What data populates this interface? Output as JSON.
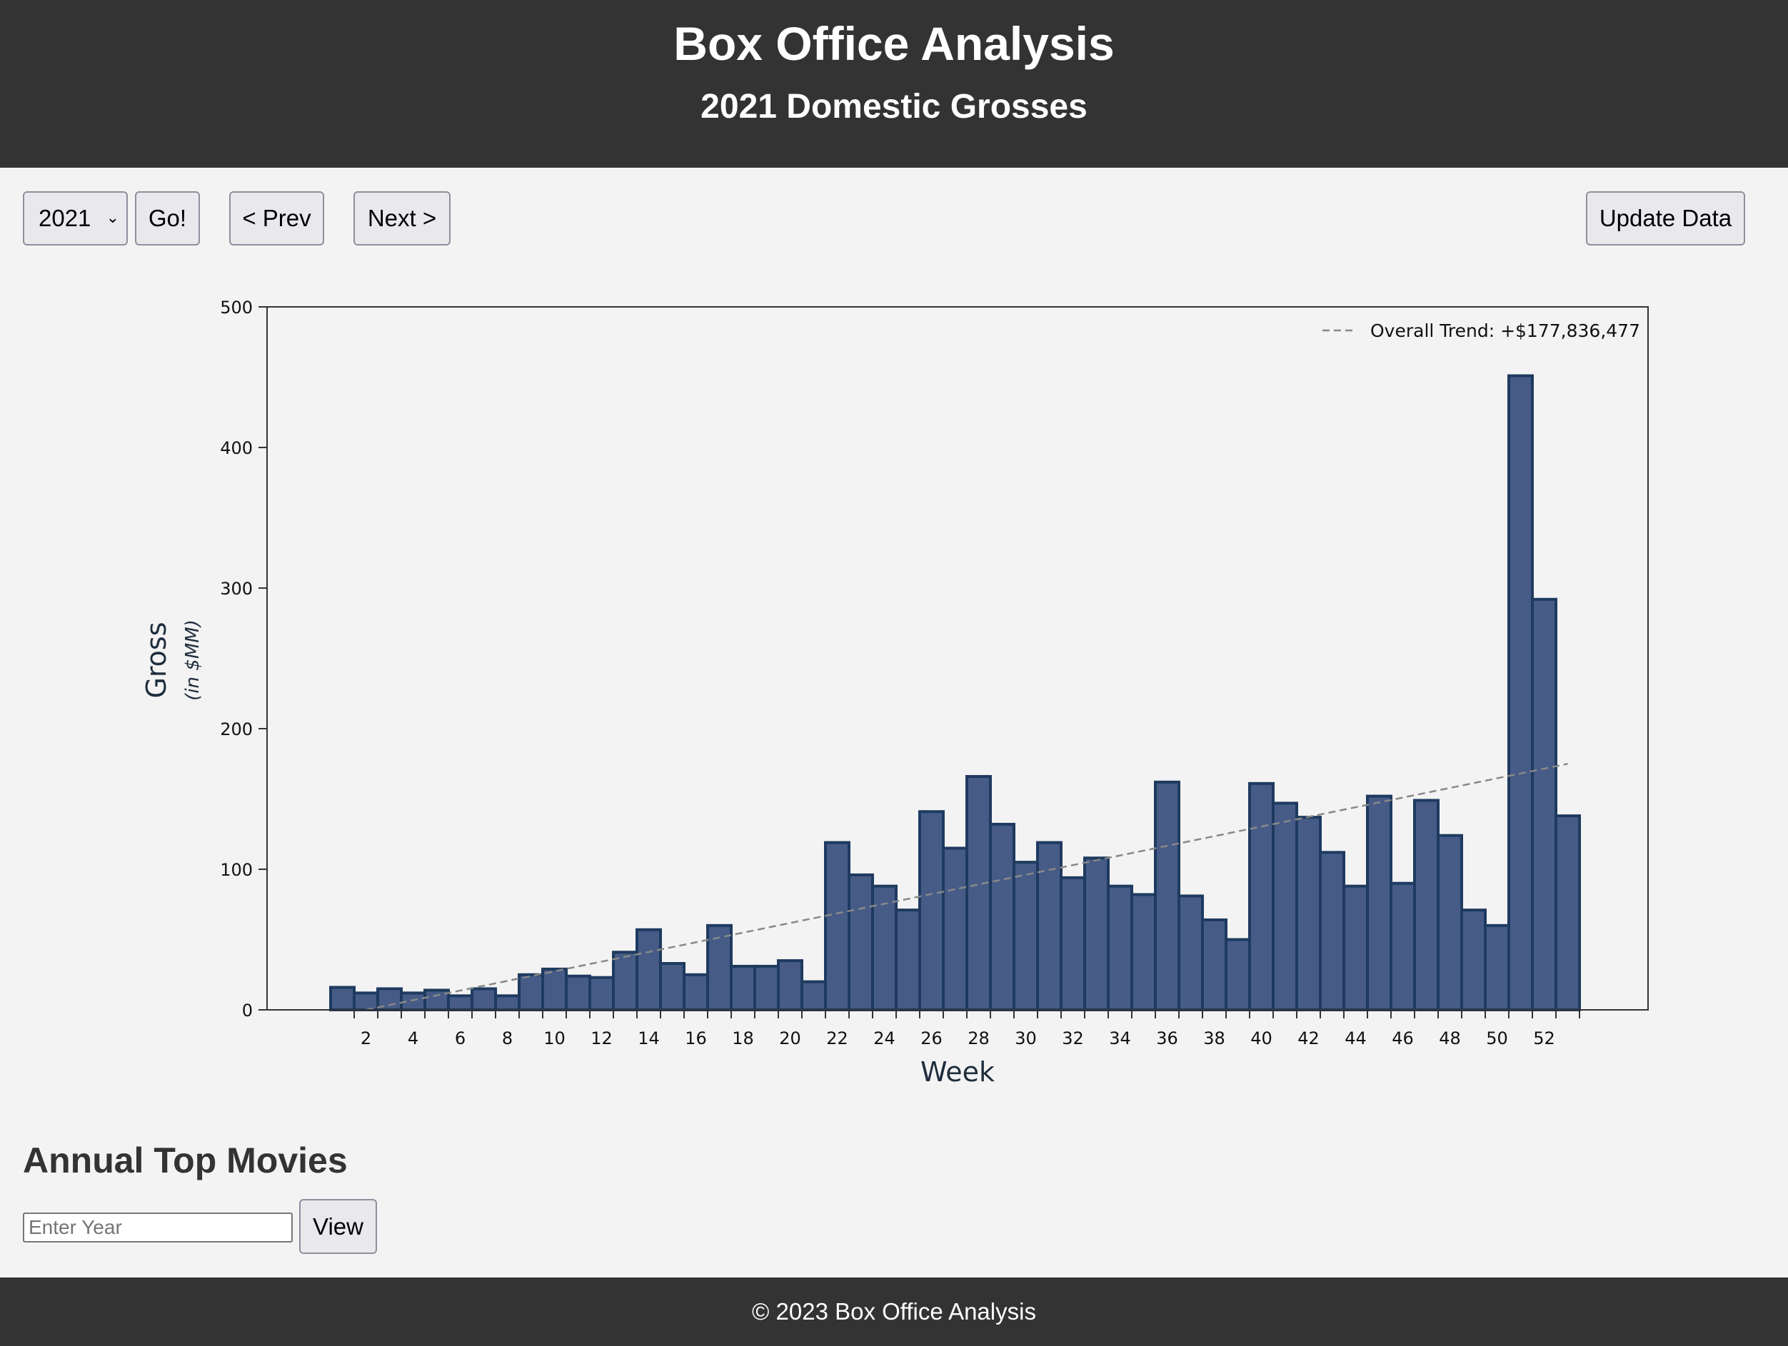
{
  "header": {
    "title": "Box Office Analysis",
    "subtitle": "2021 Domestic Grosses"
  },
  "controls": {
    "year_selected": "2021",
    "go_label": "Go!",
    "prev_label": "< Prev",
    "next_label": "Next >",
    "update_label": "Update Data"
  },
  "chart_data": {
    "type": "bar",
    "xlabel": "Week",
    "ylabel": "Gross",
    "ylabel_units": "(in $MM)",
    "ylim": [
      0,
      500
    ],
    "yticks": [
      0,
      100,
      200,
      300,
      400,
      500
    ],
    "xticks": [
      2,
      4,
      6,
      8,
      10,
      12,
      14,
      16,
      18,
      20,
      22,
      24,
      26,
      28,
      30,
      32,
      34,
      36,
      38,
      40,
      42,
      44,
      46,
      48,
      50,
      52
    ],
    "weeks": [
      1,
      2,
      3,
      4,
      5,
      6,
      7,
      8,
      9,
      10,
      11,
      12,
      13,
      14,
      15,
      16,
      17,
      18,
      19,
      20,
      21,
      22,
      23,
      24,
      25,
      26,
      27,
      28,
      29,
      30,
      31,
      32,
      33,
      34,
      35,
      36,
      37,
      38,
      39,
      40,
      41,
      42,
      43,
      44,
      45,
      46,
      47,
      48,
      49,
      50,
      51,
      52,
      53
    ],
    "values": [
      16,
      12,
      15,
      12,
      14,
      10,
      15,
      10,
      25,
      29,
      24,
      23,
      41,
      57,
      33,
      25,
      60,
      31,
      31,
      35,
      20,
      119,
      96,
      88,
      71,
      141,
      115,
      166,
      132,
      105,
      119,
      94,
      108,
      88,
      82,
      162,
      81,
      64,
      50,
      161,
      147,
      137,
      112,
      88,
      152,
      90,
      149,
      124,
      71,
      60,
      451,
      292,
      138
    ],
    "trend": {
      "label": "Overall Trend: +$177,836,477",
      "start": [
        2,
        0
      ],
      "end": [
        53,
        175
      ],
      "legend_position": "top-right"
    },
    "colors": {
      "bar_fill": "#465c87",
      "bar_edge": "#1e3a5f",
      "trend": "#888888",
      "axis": "#333333"
    }
  },
  "top_movies": {
    "heading": "Annual Top Movies",
    "input_placeholder": "Enter Year",
    "view_label": "View"
  },
  "footer": {
    "text": "© 2023 Box Office Analysis"
  }
}
